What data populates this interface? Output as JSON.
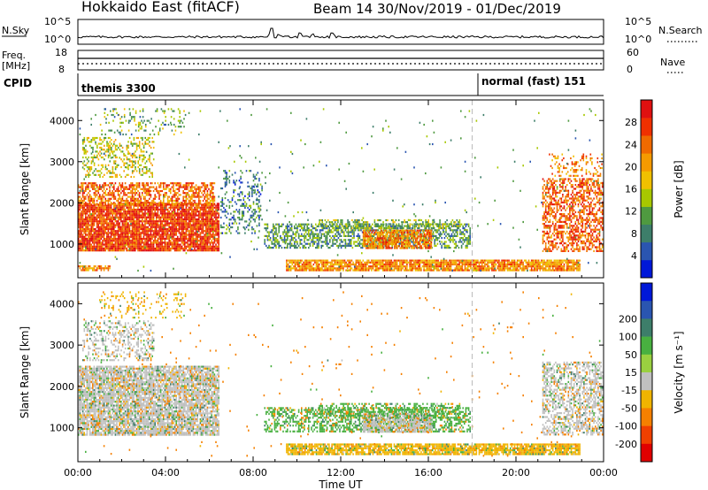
{
  "header": {
    "station": "Hokkaido East (fitACF)",
    "beam_date": "Beam 14  30/Nov/2019 - 01/Dec/2019"
  },
  "top_strip": {
    "nsky_label": "N.Sky",
    "nsky_ticks": [
      "10^5",
      "10^0"
    ],
    "nsearch_label": "N.Search",
    "freq_label_1": "Freq.",
    "freq_label_2": "[MHz]",
    "freq_ticks": [
      "18",
      "8"
    ],
    "nave_ticks": [
      "60",
      "0"
    ],
    "nave_label": "Nave",
    "cpid_label": "CPID",
    "cpid_mode_1": "themis 3300",
    "cpid_mode_2": "normal (fast) 151"
  },
  "colors": {
    "power_scale": [
      "#0018d8",
      "#2a55b0",
      "#3d7e6a",
      "#4f9a40",
      "#a8c800",
      "#f0c000",
      "#f59a00",
      "#f06a00",
      "#f03000",
      "#e01010"
    ],
    "velocity_scale": [
      "#0018d8",
      "#2a55b0",
      "#3d7e6a",
      "#48b040",
      "#9ad040",
      "#c0c0c0",
      "#f0b400",
      "#f58000",
      "#f04000",
      "#e00000"
    ]
  },
  "chart_data": [
    {
      "type": "heatmap",
      "panel": "power",
      "ylabel": "Slant Range [km]",
      "xlabel": "",
      "x_ticks": [
        "00:00",
        "04:00",
        "08:00",
        "12:00",
        "16:00",
        "20:00",
        "00:00"
      ],
      "y_ticks": [
        "1000",
        "2000",
        "3000",
        "4000"
      ],
      "xlim": [
        0,
        24
      ],
      "ylim": [
        180,
        4500
      ],
      "colorbar_label": "Power [dB]",
      "colorbar_ticks": [
        "4",
        "8",
        "12",
        "16",
        "20",
        "24",
        "28"
      ],
      "cpid_change_hour": 18,
      "scatter_regions": [
        {
          "t0": 0.0,
          "t1": 6.5,
          "r0": 800,
          "r1": 2000,
          "value": 27,
          "density": 0.9
        },
        {
          "t0": 0.0,
          "t1": 6.3,
          "r0": 1900,
          "r1": 2500,
          "value": 24,
          "density": 0.6
        },
        {
          "t0": 0.2,
          "t1": 3.5,
          "r0": 2600,
          "r1": 3600,
          "value": 16,
          "density": 0.35
        },
        {
          "t0": 1.0,
          "t1": 5.0,
          "r0": 3600,
          "r1": 4300,
          "value": 12,
          "density": 0.15
        },
        {
          "t0": 6.5,
          "t1": 8.5,
          "r0": 1200,
          "r1": 2800,
          "value": 8,
          "density": 0.25
        },
        {
          "t0": 8.5,
          "t1": 18.0,
          "r0": 850,
          "r1": 1500,
          "value": 10,
          "density": 0.55
        },
        {
          "t0": 13.0,
          "t1": 16.2,
          "r0": 850,
          "r1": 1350,
          "value": 23,
          "density": 0.8
        },
        {
          "t0": 11.0,
          "t1": 17.5,
          "r0": 1350,
          "r1": 1600,
          "value": 13,
          "density": 0.45
        },
        {
          "t0": 0.0,
          "t1": 1.5,
          "r0": 300,
          "r1": 480,
          "value": 22,
          "density": 0.7
        },
        {
          "t0": 9.5,
          "t1": 23.0,
          "r0": 300,
          "r1": 620,
          "value": 22,
          "density": 0.85
        },
        {
          "t0": 21.2,
          "t1": 24.0,
          "r0": 800,
          "r1": 2600,
          "value": 25,
          "density": 0.55
        },
        {
          "t0": 21.5,
          "t1": 24.0,
          "r0": 2600,
          "r1": 3200,
          "value": 22,
          "density": 0.25
        },
        {
          "t0": 0.0,
          "t1": 24.0,
          "r0": 300,
          "r1": 4300,
          "value": 10,
          "density": 0.01
        }
      ]
    },
    {
      "type": "heatmap",
      "panel": "velocity",
      "ylabel": "Slant Range [km]",
      "xlabel": "Time UT",
      "x_ticks": [
        "00:00",
        "04:00",
        "08:00",
        "12:00",
        "16:00",
        "20:00",
        "00:00"
      ],
      "y_ticks": [
        "1000",
        "2000",
        "3000",
        "4000"
      ],
      "xlim": [
        0,
        24
      ],
      "ylim": [
        180,
        4500
      ],
      "colorbar_label": "Velocity [m s⁻¹]",
      "colorbar_ticks": [
        "-200",
        "-100",
        "-50",
        "-15",
        "15",
        "50",
        "100",
        "200"
      ],
      "cpid_change_hour": 18,
      "scatter_regions": [
        {
          "t0": 0.0,
          "t1": 6.5,
          "r0": 800,
          "r1": 2500,
          "value": 0,
          "density": 0.85
        },
        {
          "t0": 0.2,
          "t1": 3.5,
          "r0": 2600,
          "r1": 3600,
          "value": 0,
          "density": 0.35
        },
        {
          "t0": 1.0,
          "t1": 5.0,
          "r0": 3600,
          "r1": 4300,
          "value": -30,
          "density": 0.15
        },
        {
          "t0": 8.5,
          "t1": 18.0,
          "r0": 850,
          "r1": 1500,
          "value": 30,
          "density": 0.5
        },
        {
          "t0": 13.0,
          "t1": 16.2,
          "r0": 850,
          "r1": 1350,
          "value": 0,
          "density": 0.8
        },
        {
          "t0": 11.0,
          "t1": 17.5,
          "r0": 1200,
          "r1": 1600,
          "value": 40,
          "density": 0.4
        },
        {
          "t0": 9.5,
          "t1": 23.0,
          "r0": 300,
          "r1": 620,
          "value": -40,
          "density": 0.85
        },
        {
          "t0": 21.2,
          "t1": 24.0,
          "r0": 800,
          "r1": 2600,
          "value": 0,
          "density": 0.55
        },
        {
          "t0": 0.0,
          "t1": 24.0,
          "r0": 300,
          "r1": 4300,
          "value": -60,
          "density": 0.01
        }
      ]
    }
  ]
}
